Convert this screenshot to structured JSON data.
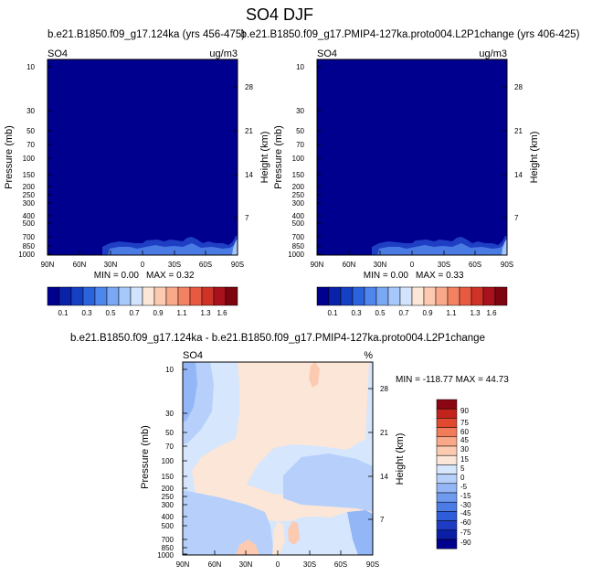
{
  "page_title": "SO4 DJF",
  "colors": {
    "background_field": "#00008f",
    "levels_panel": [
      "#00008f",
      "#0a22a8",
      "#1540c4",
      "#2b63dc",
      "#4f86ec",
      "#7aa8f5",
      "#a7c8fb",
      "#d2e4fd",
      "#fbe6d8",
      "#fccab1",
      "#f9a98a",
      "#f28262",
      "#e75a41",
      "#cf3227",
      "#a8121c",
      "#7d0510"
    ],
    "diff_levels": [
      "#00008f",
      "#0a1fa5",
      "#1d3cc3",
      "#2f5cd8",
      "#4b7ce6",
      "#6e9af0",
      "#93b6f6",
      "#b7d0fb",
      "#d5e6fd",
      "#fbe6d8",
      "#fccab1",
      "#f9a98a",
      "#f27b5a",
      "#e0492f",
      "#c2231d",
      "#8a0612"
    ]
  },
  "chart_data": [
    {
      "type": "heatmap",
      "panel_title": "b.e21.B1850.f09_g17.124ka (yrs 456-475)",
      "left_label": "SO4",
      "right_label": "ug/m3",
      "xlabel": "",
      "ylabel": "Pressure (mb)",
      "y2label": "Height (km)",
      "x_ticks": [
        "90N",
        "60N",
        "30N",
        "0",
        "30S",
        "60S",
        "90S"
      ],
      "y_ticks": [
        10,
        30,
        50,
        70,
        100,
        150,
        200,
        250,
        300,
        400,
        500,
        700,
        850,
        1000
      ],
      "y2_ticks": [
        28,
        21,
        14,
        7
      ],
      "min_label": "MIN =   0.00",
      "max_label": "MAX =   0.32",
      "colorbar_labels": [
        "0.1",
        "0.3",
        "0.5",
        "0.7",
        "0.9",
        "1.1",
        "1.3",
        "1.6"
      ],
      "background_value": 0.0
    },
    {
      "type": "heatmap",
      "panel_title": "b.e21.B1850.f09_g17.PMIP4-127ka.proto004.L2P1change (yrs 406-425)",
      "left_label": "SO4",
      "right_label": "ug/m3",
      "xlabel": "",
      "ylabel": "Pressure (mb)",
      "y2label": "Height (km)",
      "x_ticks": [
        "90N",
        "60N",
        "30N",
        "0",
        "30S",
        "60S",
        "90S"
      ],
      "y_ticks": [
        10,
        30,
        50,
        70,
        100,
        150,
        200,
        250,
        300,
        400,
        500,
        700,
        850,
        1000
      ],
      "y2_ticks": [
        28,
        21,
        14,
        7
      ],
      "min_label": "MIN =   0.00",
      "max_label": "MAX =   0.33",
      "colorbar_labels": [
        "0.1",
        "0.3",
        "0.5",
        "0.7",
        "0.9",
        "1.1",
        "1.3",
        "1.6"
      ],
      "background_value": 0.0
    },
    {
      "type": "heatmap",
      "panel_title": "b.e21.B1850.f09_g17.124ka - b.e21.B1850.f09_g17.PMIP4-127ka.proto004.L2P1change",
      "left_label": "SO4",
      "right_label": "%",
      "xlabel": "",
      "ylabel": "Pressure (mb)",
      "y2label": "Height (km)",
      "x_ticks": [
        "90N",
        "60N",
        "30N",
        "0",
        "30S",
        "60S",
        "90S"
      ],
      "y_ticks": [
        10,
        30,
        50,
        70,
        100,
        150,
        200,
        250,
        300,
        400,
        500,
        700,
        850,
        1000
      ],
      "y2_ticks": [
        28,
        21,
        14,
        7
      ],
      "minmax_label": "MIN = -118.77  MAX =  44.73",
      "colorbar_labels": [
        "90",
        "75",
        "60",
        "45",
        "30",
        "15",
        "5",
        "0",
        "-5",
        "-15",
        "-30",
        "-45",
        "-60",
        "-75",
        "-90"
      ],
      "background_value": 0
    }
  ]
}
